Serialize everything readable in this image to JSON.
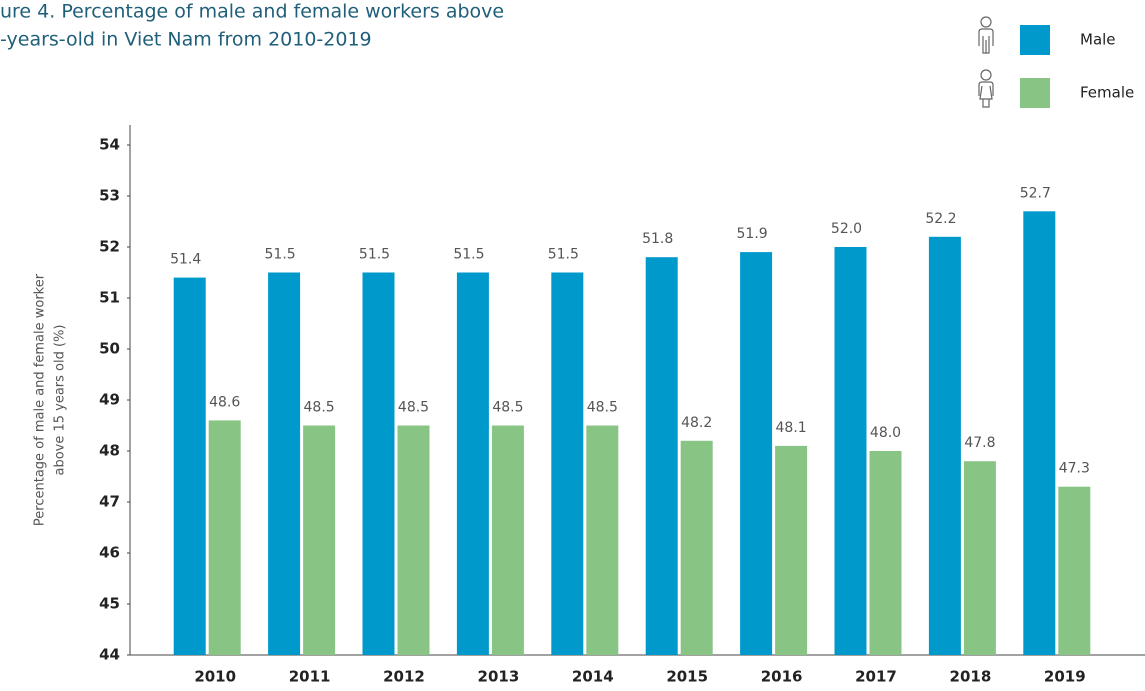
{
  "chart_data": {
    "type": "bar",
    "title": [
      "ure 4. Percentage of male and female workers above",
      "-years-old in Viet Nam from 2010-2019"
    ],
    "y_label": [
      "Percentage of male and female worker",
      "above 15 years old (%)"
    ],
    "categories": [
      "2010",
      "2011",
      "2012",
      "2013",
      "2014",
      "2015",
      "2016",
      "2017",
      "2018",
      "2019"
    ],
    "series": [
      {
        "name": "Male",
        "color": "#0099cc",
        "values": [
          51.4,
          51.5,
          51.5,
          51.5,
          51.5,
          51.8,
          51.9,
          52.0,
          52.2,
          52.7
        ],
        "value_labels": [
          "51.4",
          "51.5",
          "51.5",
          "51.5",
          "51.5",
          "51.8",
          "51.9",
          "52.0",
          "52.2",
          "52.7"
        ]
      },
      {
        "name": "Female",
        "color": "#88c484",
        "values": [
          48.6,
          48.5,
          48.5,
          48.5,
          48.5,
          48.2,
          48.1,
          48.0,
          47.8,
          47.3
        ],
        "value_labels": [
          "48.6",
          "48.5",
          "48.5",
          "48.5",
          "48.5",
          "48.2",
          "48.1",
          "48.0",
          "47.8",
          "47.3"
        ]
      }
    ],
    "ylim": [
      44,
      54
    ],
    "yticks": [
      44,
      45,
      46,
      47,
      48,
      49,
      50,
      51,
      52,
      53,
      54
    ],
    "grid": false,
    "legend": "top-right"
  }
}
